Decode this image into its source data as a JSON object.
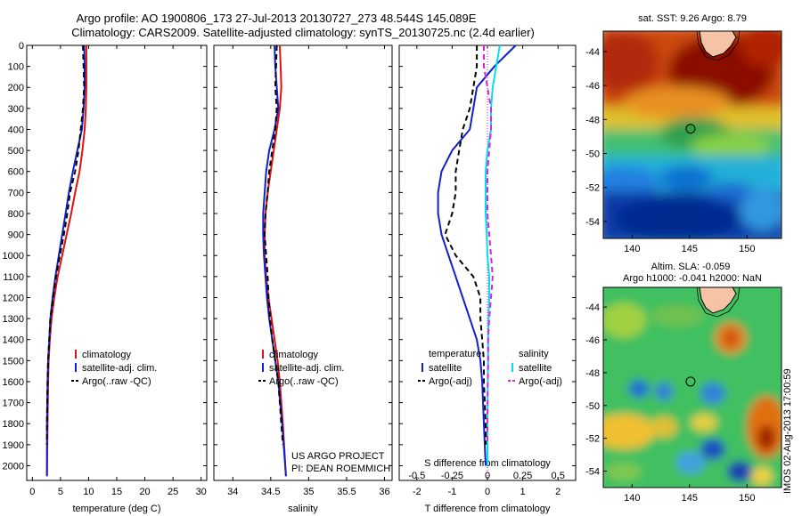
{
  "header": {
    "title_line1": "Argo profile: AO 1900806_173 27-Jul-2013 20130727_273 48.544S 145.089E",
    "title_line2": "Climatology: CARS2009. Satellite-adjusted climatology: synTS_20130725.nc (2.4d earlier)"
  },
  "project": {
    "line1": "US ARGO PROJECT",
    "line2": "PI: DEAN ROEMMICH"
  },
  "stamp": "IMOS 02-Aug-2013 17:00:59",
  "chart_data": [
    {
      "type": "line",
      "panel": "temperature",
      "xlabel": "temperature (deg C)",
      "ylabel": "",
      "xlim": [
        -1,
        31
      ],
      "ylim": [
        2070,
        0
      ],
      "xticks": [
        0,
        5,
        10,
        15,
        20,
        25,
        30
      ],
      "yticks": [
        0,
        100,
        200,
        300,
        400,
        500,
        600,
        700,
        800,
        900,
        1000,
        1100,
        1200,
        1300,
        1400,
        1500,
        1600,
        1700,
        1800,
        1900,
        2000
      ],
      "legend": [
        "climatology",
        "satellite-adj. clim.",
        "Argo(..raw -QC)"
      ],
      "legend_placement": "lower-right",
      "series": [
        {
          "name": "climatology",
          "color": "#e01010",
          "depth": [
            0,
            100,
            200,
            300,
            400,
            500,
            600,
            700,
            800,
            900,
            1000,
            1100,
            1200,
            1300,
            1400,
            1500,
            1600,
            1800,
            2050
          ],
          "values": [
            9.6,
            9.6,
            9.6,
            9.5,
            9.3,
            8.9,
            8.4,
            7.6,
            6.9,
            6.1,
            5.3,
            4.5,
            3.9,
            3.4,
            3.1,
            2.9,
            2.8,
            2.7,
            2.6
          ]
        },
        {
          "name": "satellite-adj. clim.",
          "color": "#1020d0",
          "depth": [
            0,
            100,
            200,
            300,
            400,
            500,
            600,
            700,
            800,
            900,
            1000,
            1100,
            1200,
            1300,
            1400,
            1500,
            1600,
            1800,
            2050
          ],
          "values": [
            9.2,
            9.3,
            9.3,
            9.1,
            8.8,
            8.0,
            7.2,
            6.5,
            5.9,
            5.3,
            4.7,
            4.1,
            3.6,
            3.2,
            3.0,
            2.8,
            2.7,
            2.6,
            2.6
          ]
        },
        {
          "name": "Argo(..raw -QC)",
          "color": "#000000",
          "dashed": true,
          "depth": [
            0,
            100,
            200,
            300,
            400,
            500,
            600,
            700,
            800,
            900,
            1000,
            1100,
            1200,
            1300,
            1400,
            1500,
            1600,
            1800,
            1900
          ],
          "values": [
            9.0,
            9.1,
            9.2,
            9.0,
            8.6,
            8.2,
            7.6,
            6.7,
            6.2,
            5.6,
            4.9,
            4.2,
            3.7,
            3.2,
            3.0,
            2.8,
            2.7,
            2.6,
            2.6
          ]
        }
      ]
    },
    {
      "type": "line",
      "panel": "salinity",
      "xlabel": "salinity",
      "ylabel": "",
      "xlim": [
        33.75,
        36.1
      ],
      "ylim": [
        2070,
        0
      ],
      "xticks": [
        34,
        34.5,
        35,
        35.5,
        36
      ],
      "legend": [
        "climatology",
        "satellite-adj. clim.",
        "Argo(..raw -QC)"
      ],
      "legend_placement": "lower-right",
      "series": [
        {
          "name": "climatology",
          "color": "#e01010",
          "depth": [
            0,
            100,
            200,
            300,
            400,
            500,
            600,
            700,
            800,
            900,
            1000,
            1100,
            1200,
            1300,
            1400,
            1500,
            1600,
            1800,
            2050
          ],
          "values": [
            34.62,
            34.63,
            34.64,
            34.62,
            34.58,
            34.54,
            34.5,
            34.46,
            34.43,
            34.42,
            34.42,
            34.44,
            34.47,
            34.51,
            34.55,
            34.59,
            34.62,
            34.66,
            34.7
          ]
        },
        {
          "name": "satellite-adj. clim.",
          "color": "#1020d0",
          "depth": [
            0,
            100,
            200,
            300,
            400,
            500,
            600,
            700,
            800,
            900,
            1000,
            1100,
            1200,
            1300,
            1400,
            1500,
            1600,
            1800,
            2050
          ],
          "values": [
            34.55,
            34.56,
            34.58,
            34.6,
            34.55,
            34.48,
            34.44,
            34.42,
            34.4,
            34.4,
            34.41,
            34.43,
            34.45,
            34.48,
            34.52,
            34.56,
            34.6,
            34.65,
            34.7
          ]
        },
        {
          "name": "Argo(..raw -QC)",
          "color": "#000000",
          "dashed": true,
          "depth": [
            0,
            100,
            200,
            300,
            400,
            500,
            600,
            700,
            800,
            900,
            1000,
            1100,
            1200,
            1300,
            1400,
            1500,
            1600,
            1800,
            1900
          ],
          "values": [
            34.58,
            34.57,
            34.56,
            34.58,
            34.56,
            34.52,
            34.48,
            34.46,
            34.43,
            34.42,
            34.44,
            34.46,
            34.47,
            34.49,
            34.52,
            34.56,
            34.6,
            34.64,
            34.66
          ]
        }
      ]
    },
    {
      "type": "line",
      "panel": "difference",
      "xlabel": "T difference from climatology",
      "xlabel_top": "S difference from climatology",
      "ylabel": "",
      "xlim": [
        -2.5,
        2.5
      ],
      "ylim": [
        2070,
        0
      ],
      "xticks": [
        -2,
        -1,
        0,
        1,
        2
      ],
      "xticks_s": [
        "-0.5",
        "-0.25",
        "0",
        "0.25",
        "0.5"
      ],
      "legend_temperature_title": "temperature",
      "legend_salinity_title": "salinity",
      "legend": [
        "satellite",
        "Argo(-adj)",
        "satellite",
        "Argo(-adj)"
      ],
      "legend_placement": "lower",
      "series": [
        {
          "name": "temperature satellite",
          "color": "#1020d0",
          "depth": [
            0,
            100,
            200,
            300,
            400,
            500,
            600,
            700,
            800,
            900,
            1000,
            1100,
            1200,
            1300,
            1400,
            1500,
            1600,
            1800,
            2000
          ],
          "values": [
            0.8,
            0.2,
            -0.3,
            -0.4,
            -0.5,
            -1.0,
            -1.3,
            -1.4,
            -1.4,
            -1.3,
            -1.1,
            -0.9,
            -0.7,
            -0.5,
            -0.3,
            -0.2,
            -0.15,
            -0.1,
            -0.05
          ]
        },
        {
          "name": "temperature Argo(-adj)",
          "color": "#000000",
          "dashed": true,
          "depth": [
            0,
            100,
            200,
            300,
            400,
            500,
            600,
            700,
            800,
            900,
            1000,
            1100,
            1200,
            1300,
            1400,
            1500,
            1600,
            1800,
            1900
          ],
          "values": [
            -0.3,
            -0.3,
            -0.4,
            -0.5,
            -0.7,
            -0.8,
            -0.9,
            -0.9,
            -1.0,
            -1.2,
            -0.9,
            -0.4,
            -0.2,
            -0.2,
            -0.15,
            -0.1,
            -0.1,
            -0.05,
            -0.05
          ]
        },
        {
          "name": "salinity satellite",
          "color": "#00e0f0",
          "depth": [
            0,
            100,
            200,
            300,
            400,
            500,
            600,
            700,
            800,
            900,
            1000,
            1100,
            1200,
            1300,
            1400,
            1500,
            1600,
            1800,
            2000
          ],
          "values": [
            0.35,
            0.25,
            0.15,
            0.1,
            0.1,
            0.0,
            -0.05,
            -0.05,
            -0.05,
            -0.02,
            0.0,
            0.05,
            0.05,
            0.03,
            0.02,
            0.02,
            0.01,
            0.0,
            0.0
          ]
        },
        {
          "name": "salinity Argo(-adj)",
          "color": "#e020e0",
          "dashed": true,
          "depth": [
            0,
            100,
            200,
            300,
            400,
            500,
            600,
            700,
            800,
            900,
            1000,
            1100,
            1200,
            1300,
            1400,
            1500,
            1600,
            1800,
            1900
          ],
          "values": [
            -0.1,
            -0.1,
            0.0,
            0.1,
            0.1,
            0.05,
            0.0,
            0.0,
            0.0,
            0.05,
            0.1,
            0.15,
            0.1,
            0.05,
            0.02,
            0.02,
            0.01,
            0.0,
            0.0
          ]
        }
      ]
    },
    {
      "type": "heatmap",
      "panel": "sst_map",
      "title": "sat. SST: 9.26 Argo: 8.79",
      "xlim": [
        137.5,
        153
      ],
      "ylim": [
        -55,
        -42.8
      ],
      "xticks": [
        140,
        145,
        150
      ],
      "yticks": [
        -44,
        -46,
        -48,
        -50,
        -52,
        -54
      ],
      "marker": {
        "lon": 145.089,
        "lat": -48.544
      }
    },
    {
      "type": "heatmap",
      "panel": "sla_map",
      "title_line1": "Altim. SLA: -0.059",
      "title_line2": "Argo h1000: -0.041 h2000: NaN",
      "xlim": [
        137.5,
        153
      ],
      "ylim": [
        -55,
        -42.8
      ],
      "xticks": [
        140,
        145,
        150
      ],
      "yticks": [
        -44,
        -46,
        -48,
        -50,
        -52,
        -54
      ],
      "marker": {
        "lon": 145.089,
        "lat": -48.544
      }
    }
  ]
}
